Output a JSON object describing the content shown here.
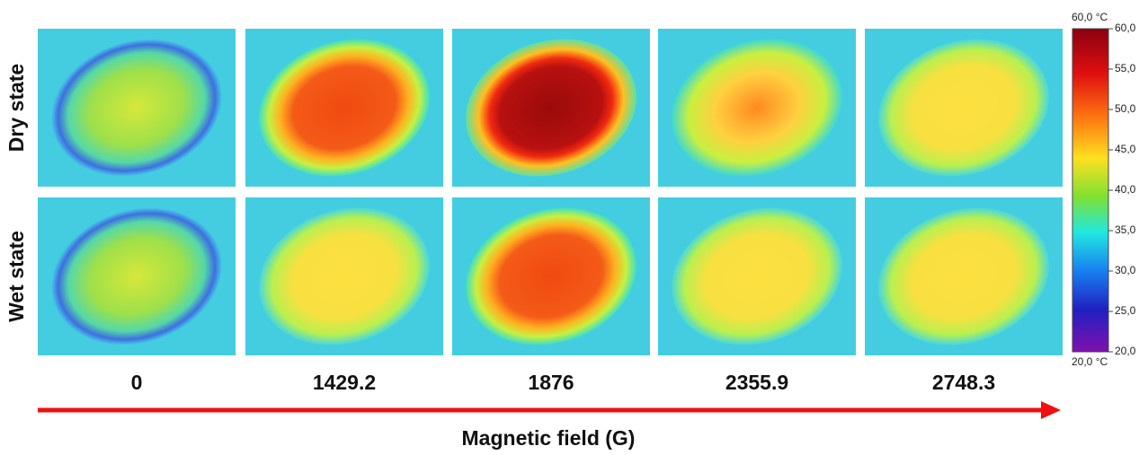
{
  "row_labels": [
    "Dry state",
    "Wet state"
  ],
  "columns": [
    "0",
    "1429.2",
    "1876",
    "2355.9",
    "2748.3"
  ],
  "x_axis_label": "Magnetic field (G)",
  "colorbar": {
    "max_label": "60,0 °C",
    "min_label": "20,0 °C",
    "ticks": [
      "60,0",
      "55,0",
      "50,0",
      "45,0",
      "40,0",
      "35,0",
      "30,0",
      "25,0",
      "20,0"
    ]
  }
}
